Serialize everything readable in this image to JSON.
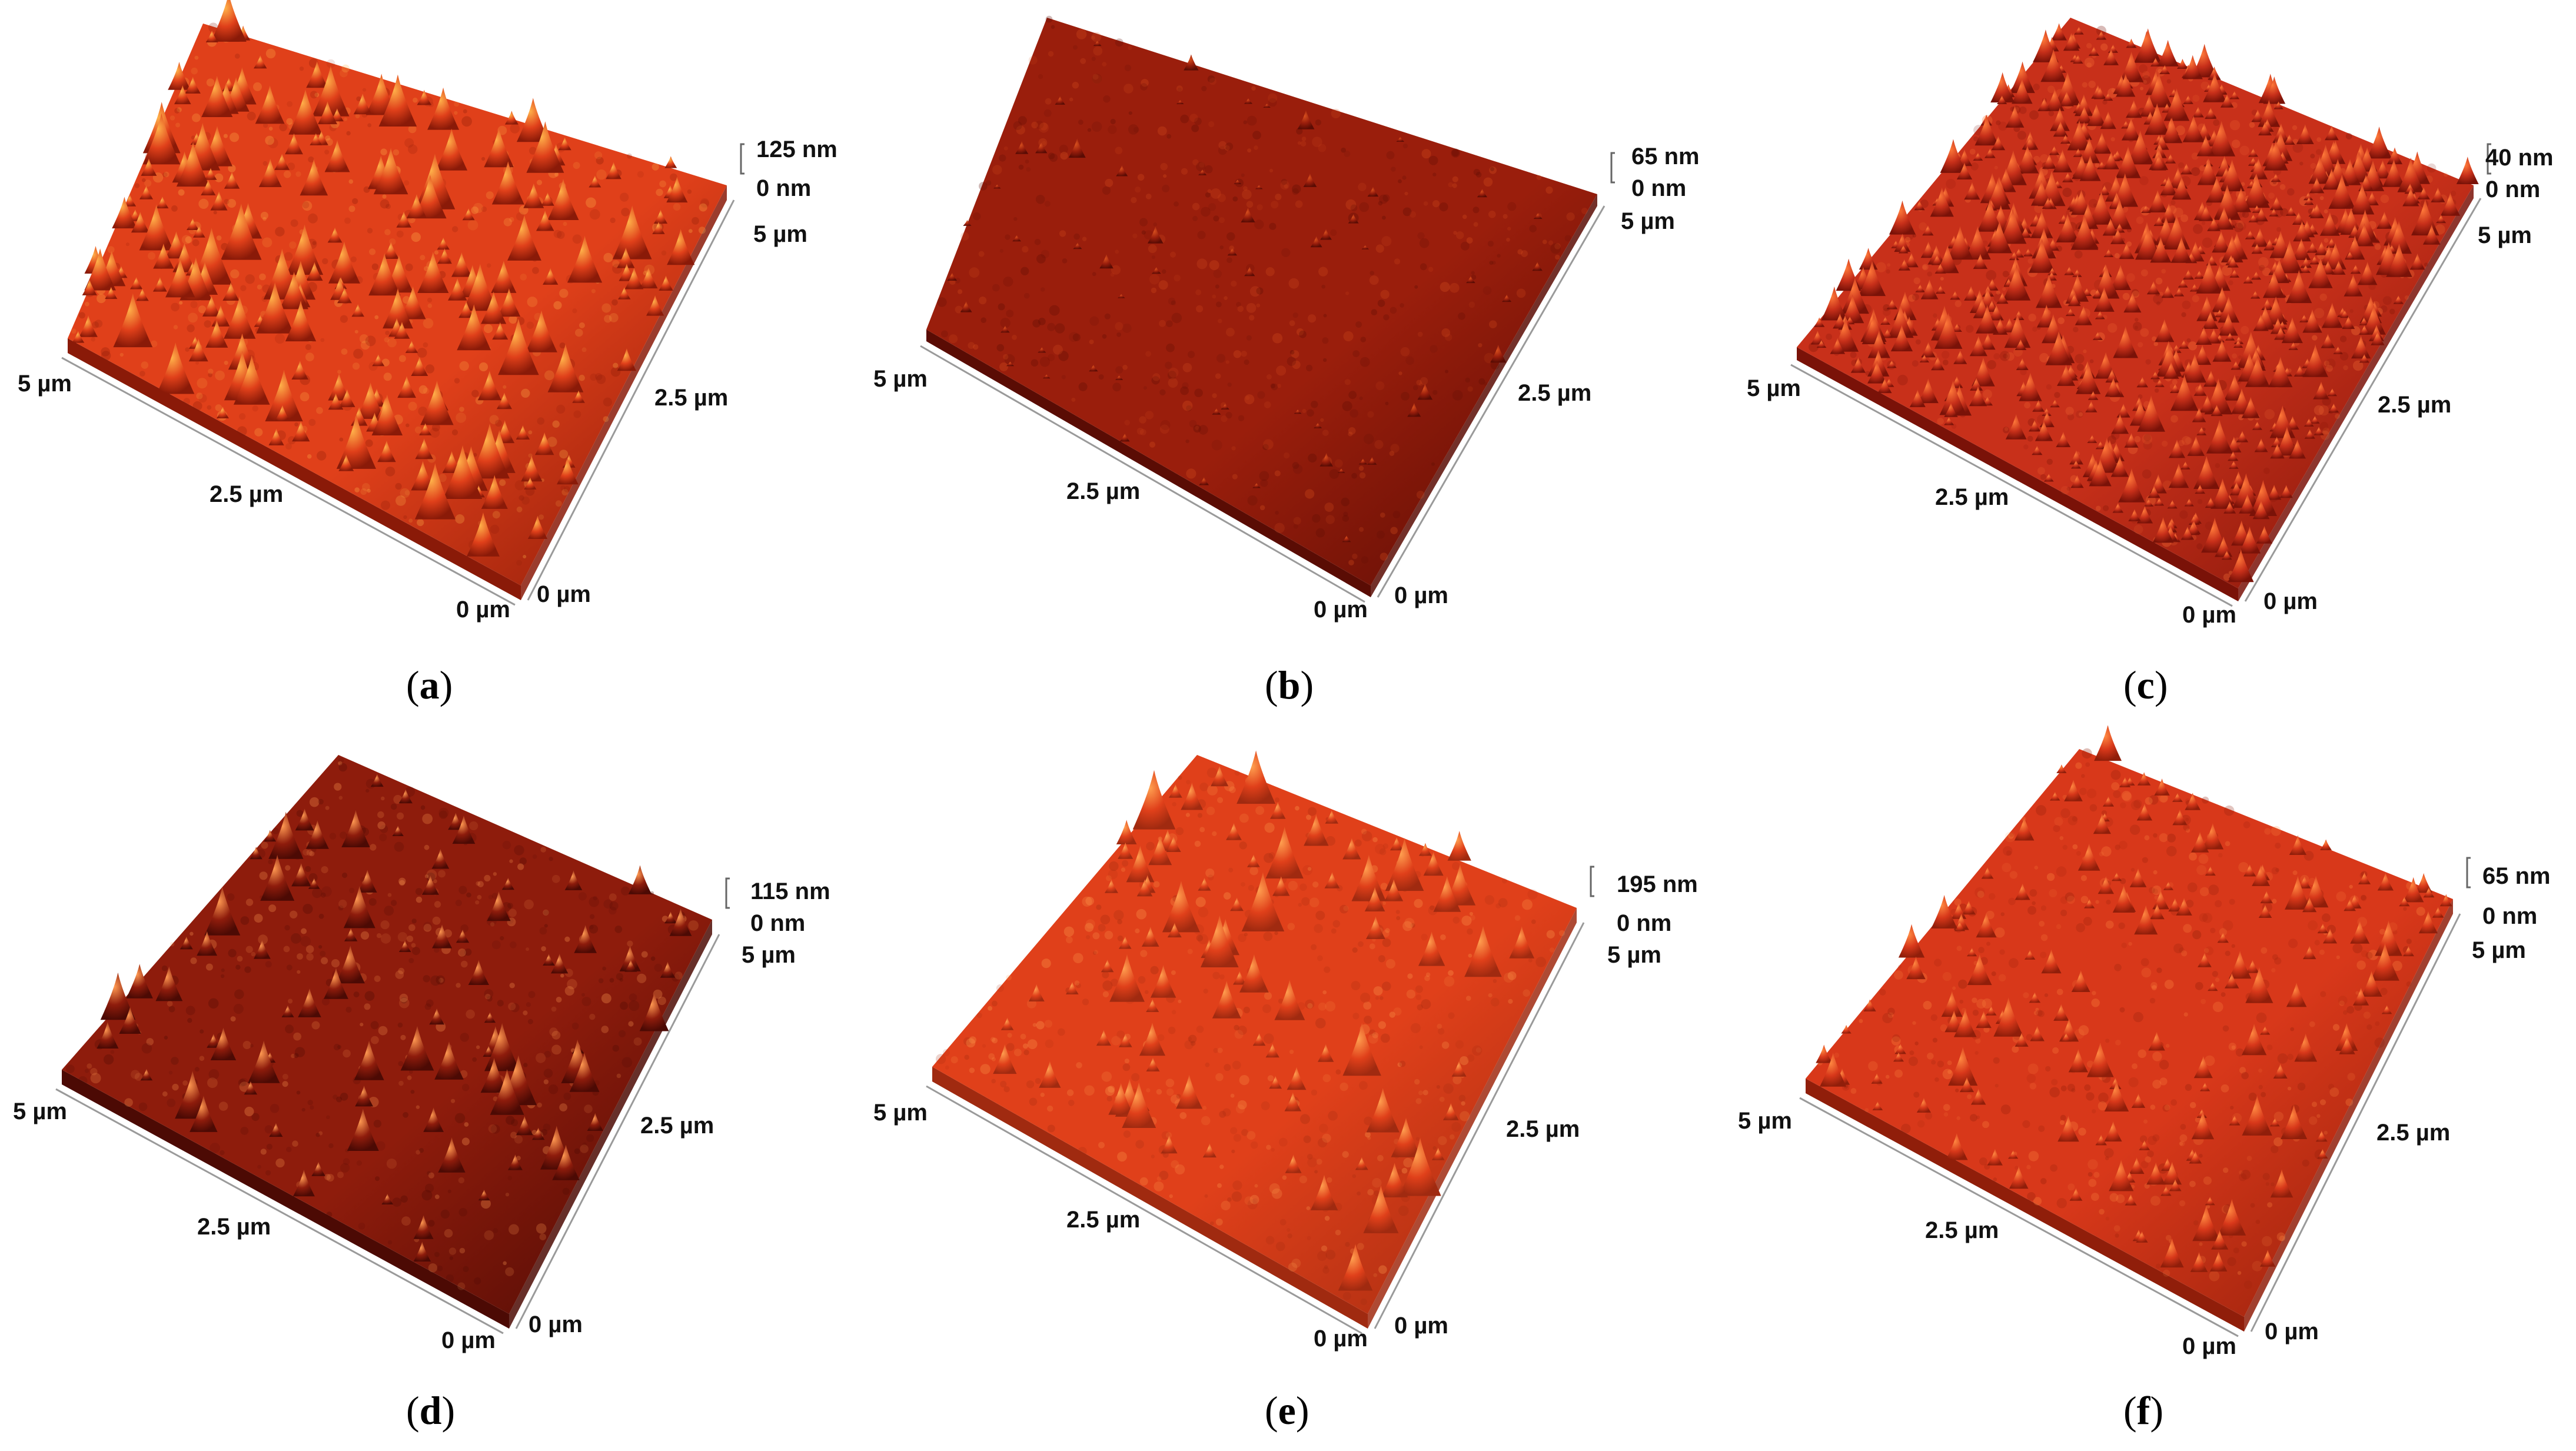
{
  "panels": [
    {
      "id": "a",
      "caption_letter": "a",
      "z_max": "125 nm",
      "z_min": "0 nm",
      "y_max": "5 µm",
      "y_mid": "2.5 µm",
      "x_max": "5 µm",
      "x_mid": "2.5 µm",
      "x_zero": "0 µm",
      "y_zero": "0 µm",
      "surface_color": "#e0401a",
      "peak_color": "#ffb24a",
      "shade_color": "#8a1a08",
      "peak_count": 220,
      "peak_height_rel": 0.85
    },
    {
      "id": "b",
      "caption_letter": "b",
      "z_max": "65 nm",
      "z_min": "0 nm",
      "y_max": "5 µm",
      "y_mid": "2.5 µm",
      "x_max": "5 µm",
      "x_mid": "2.5 µm",
      "x_zero": "0 µm",
      "y_zero": "0 µm",
      "surface_color": "#9a1e0c",
      "peak_color": "#d8501e",
      "shade_color": "#5a0c04",
      "peak_count": 60,
      "peak_height_rel": 0.3
    },
    {
      "id": "c",
      "caption_letter": "c",
      "z_max": "40 nm",
      "z_min": "0 nm",
      "y_max": "5 µm",
      "y_mid": "2.5 µm",
      "x_max": "5 µm",
      "x_mid": "2.5 µm",
      "x_zero": "0 µm",
      "y_zero": "0 µm",
      "surface_color": "#c8301a",
      "peak_color": "#ff7a3a",
      "shade_color": "#7a1208",
      "peak_count": 700,
      "peak_height_rel": 0.55
    },
    {
      "id": "d",
      "caption_letter": "d",
      "z_max": "115 nm",
      "z_min": "0 nm",
      "y_max": "5 µm",
      "y_mid": "2.5 µm",
      "x_max": "5 µm",
      "x_mid": "2.5 µm",
      "x_zero": "0 µm",
      "y_zero": "0 µm",
      "surface_color": "#8e1c0c",
      "peak_color": "#ff9a52",
      "shade_color": "#4c0a04",
      "peak_count": 90,
      "peak_height_rel": 0.75
    },
    {
      "id": "e",
      "caption_letter": "e",
      "z_max": "195 nm",
      "z_min": "0 nm",
      "y_max": "5 µm",
      "y_mid": "2.5 µm",
      "x_max": "5 µm",
      "x_mid": "2.5 µm",
      "x_zero": "0 µm",
      "y_zero": "0 µm",
      "surface_color": "#e0401a",
      "peak_color": "#ffa050",
      "shade_color": "#a02a10",
      "peak_count": 90,
      "peak_height_rel": 0.9
    },
    {
      "id": "f",
      "caption_letter": "f",
      "z_max": "65 nm",
      "z_min": "0 nm",
      "y_max": "5 µm",
      "y_mid": "2.5 µm",
      "x_max": "5 µm",
      "x_mid": "2.5 µm",
      "x_zero": "0 µm",
      "y_zero": "0 µm",
      "surface_color": "#d8381a",
      "peak_color": "#ff8a42",
      "shade_color": "#901e0a",
      "peak_count": 170,
      "peak_height_rel": 0.6
    }
  ]
}
